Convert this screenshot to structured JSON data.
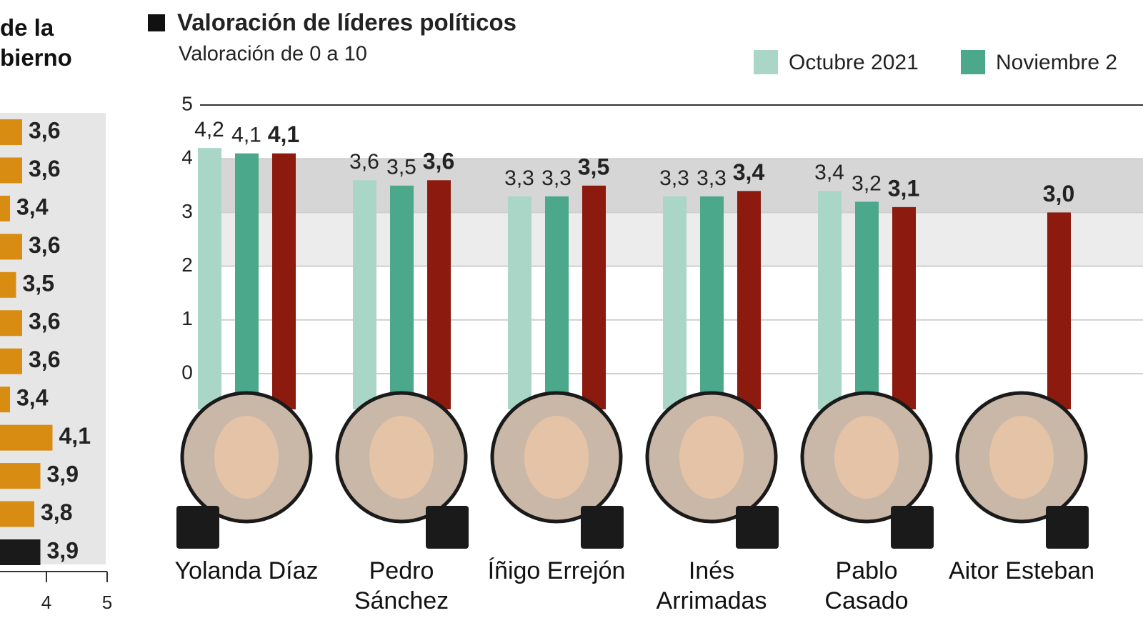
{
  "chart_data": [
    {
      "type": "hbar",
      "title": "de la bierno",
      "categories": [
        null,
        null,
        null,
        null,
        null,
        null,
        null,
        null,
        null,
        null,
        null,
        null
      ],
      "values": [
        3.6,
        3.6,
        3.4,
        3.6,
        3.5,
        3.6,
        3.6,
        3.4,
        4.1,
        3.9,
        3.8,
        3.9
      ],
      "value_labels": [
        "3,6",
        "3,6",
        "3,4",
        "3,6",
        "3,5",
        "3,6",
        "3,6",
        "3,4",
        "4,1",
        "3,9",
        "3,8",
        "3,9"
      ],
      "colors": [
        "#d98c12",
        "#d98c12",
        "#d98c12",
        "#d98c12",
        "#d98c12",
        "#d98c12",
        "#d98c12",
        "#d98c12",
        "#d98c12",
        "#d98c12",
        "#d98c12",
        "#1a1a1a"
      ],
      "xlim": [
        0,
        5
      ],
      "xticks": [
        4,
        5
      ]
    },
    {
      "type": "grouped-bar",
      "title": "Valoración de líderes políticos",
      "subtitle": "Valoración de 0 a 10",
      "categories": [
        "Yolanda Díaz",
        "Pedro Sánchez",
        "Íñigo Errejón",
        "Inés Arrimadas",
        "Pablo Casado",
        "Aitor Esteban"
      ],
      "series": [
        {
          "name": "Octubre 2021",
          "color": "#a9d6c6",
          "values": [
            4.2,
            3.6,
            3.3,
            3.3,
            3.4,
            null
          ],
          "value_labels": [
            "4,2",
            "3,6",
            "3,3",
            "3,3",
            "3,4",
            null
          ]
        },
        {
          "name": "Noviembre 2",
          "color": "#4ba88b",
          "values": [
            4.1,
            3.5,
            3.3,
            3.3,
            3.2,
            null
          ],
          "value_labels": [
            "4,1",
            "3,5",
            "3,3",
            "3,3",
            "3,2",
            null
          ]
        },
        {
          "color": "#8c1a0f",
          "values": [
            4.1,
            3.6,
            3.5,
            3.4,
            3.1,
            3.0
          ],
          "value_labels": [
            "4,1",
            "3,6",
            "3,5",
            "3,4",
            "3,1",
            "3,0"
          ]
        }
      ],
      "ylim": [
        0,
        5
      ],
      "yticks": [
        0,
        1,
        2,
        3,
        4,
        5
      ],
      "grid": true
    }
  ]
}
